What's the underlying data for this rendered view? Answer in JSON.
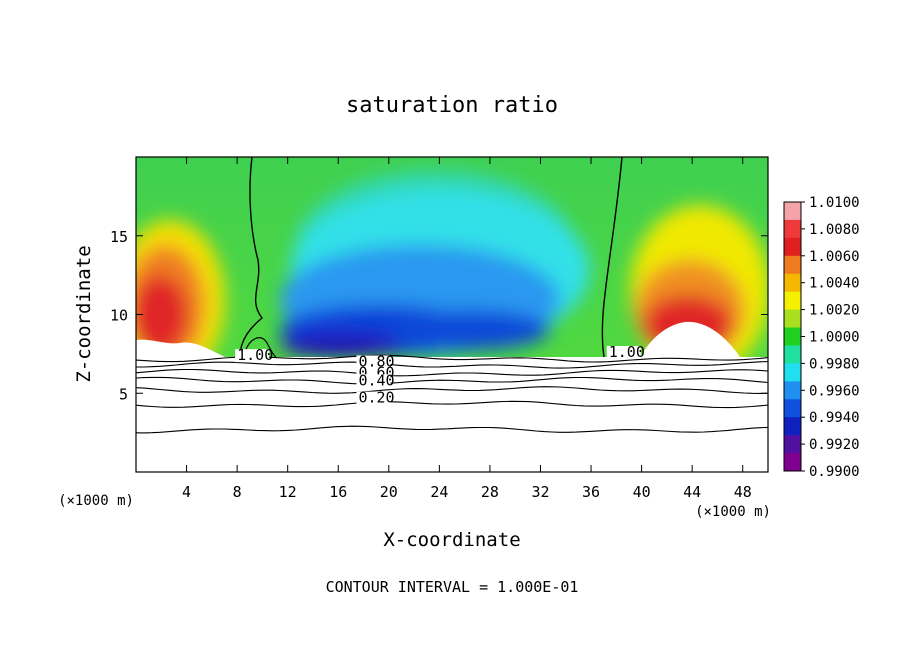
{
  "chart_data": {
    "type": "heatmap",
    "title": "saturation ratio",
    "xlabel": "X-coordinate",
    "ylabel": "Z-coordinate",
    "x_unit": "(×1000 m)",
    "z_unit": "(×1000 m)",
    "xlim": [
      0,
      50
    ],
    "ylim": [
      0,
      20
    ],
    "x_ticks": [
      "4",
      "8",
      "12",
      "16",
      "20",
      "24",
      "28",
      "32",
      "36",
      "40",
      "44",
      "48"
    ],
    "y_ticks": [
      "5",
      "10",
      "15"
    ],
    "footer": "CONTOUR INTERVAL = 1.000E-01",
    "colorbar": {
      "labels": [
        "1.0100",
        "1.0080",
        "1.0060",
        "1.0040",
        "1.0020",
        "1.0000",
        "0.9980",
        "0.9960",
        "0.9940",
        "0.9920",
        "0.9900"
      ],
      "colors": [
        "#f4a3a8",
        "#ee3a3a",
        "#e02020",
        "#f07a20",
        "#f5b800",
        "#f4f000",
        "#a8e020",
        "#20d020",
        "#20e0a0",
        "#20e0f0",
        "#2090f0",
        "#1050e0",
        "#1020c0",
        "#5010a0",
        "#800090"
      ]
    },
    "contour_labels": [
      {
        "text": "1.00",
        "x": 8.0,
        "z": 7.1
      },
      {
        "text": "1.00",
        "x": 37.4,
        "z": 7.3
      },
      {
        "text": "0.80",
        "x": 17.6,
        "z": 6.7
      },
      {
        "text": "0.60",
        "x": 17.6,
        "z": 6.0
      },
      {
        "text": "0.40",
        "x": 17.6,
        "z": 5.5
      },
      {
        "text": "0.20",
        "x": 17.6,
        "z": 4.4
      }
    ],
    "contours_below_cloud_base_z": [
      7.2,
      6.8,
      6.3,
      5.8,
      5.2,
      4.3,
      2.7
    ],
    "field": {
      "cloud_base_z": 7.3,
      "supersaturated_cores": [
        {
          "x": 3.0,
          "z": 11.0,
          "value": 1.008
        },
        {
          "x": 43.0,
          "z": 9.5,
          "value": 1.008
        }
      ],
      "subsaturated_core": {
        "x_range": [
          12,
          36
        ],
        "z": 8.5,
        "value": 0.992
      },
      "saturated_boundaries_x": [
        9.5,
        37.5
      ]
    }
  }
}
